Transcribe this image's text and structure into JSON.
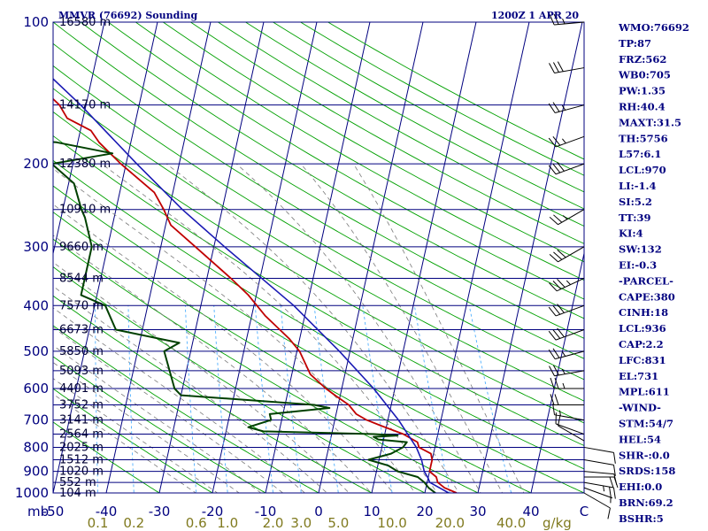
{
  "header": {
    "title": "MMVR (76692) Sounding",
    "time": "1200Z  1 APR 20"
  },
  "indices": [
    "WMO:76692",
    "TP:87",
    "FRZ:562",
    "WB0:705",
    "PW:1.35",
    "RH:40.4",
    "MAXT:31.5",
    "TH:5756",
    "L57:6.1",
    "LCL:970",
    "LI:-1.4",
    "SI:5.2",
    "TT:39",
    "KI:4",
    "SW:132",
    "EI:-0.3",
    "-PARCEL-",
    "CAPE:380",
    "CINH:18",
    "LCL:936",
    "CAP:2.2",
    "LFC:831",
    "EL:731",
    "MPL:611",
    "-WIND-",
    "STM:54/7",
    "HEL:54",
    "SHR-:0.0",
    "SRDS:158",
    "EHI:0.0",
    "BRN:69.2",
    "BSHR:5"
  ],
  "colors": {
    "frame": "#00007f",
    "isobar": "#00007f",
    "isotherm": "#00007f",
    "dry_adiabat": "#00a000",
    "moist_adiabat": "#7a7a7a",
    "mixing_ratio": "#4fb0ff",
    "temperature": "#c00000",
    "dewpoint": "#004000",
    "parcel": "#1a1ab4",
    "wind_barb": "#000000",
    "mixing_label": "#807a1f"
  },
  "chart_data": {
    "type": "line",
    "chart_kind": "skew-T log-P sounding",
    "pressure_axis": {
      "unit": "mb",
      "levels": [
        100,
        200,
        300,
        400,
        500,
        600,
        700,
        800,
        900,
        1000
      ],
      "range": [
        1000,
        100
      ],
      "scale": "log"
    },
    "temperature_axis": {
      "ticks": [
        -50,
        -40,
        -30,
        -20,
        -10,
        0,
        10,
        20,
        30,
        40
      ],
      "end_label": "C",
      "range": [
        -50,
        50
      ]
    },
    "mixing_ratio_axis": {
      "unit": "g/kg",
      "labels": [
        "0.1",
        "0.2",
        "0.6",
        "1.0",
        "2.0",
        "3.0",
        "5.0",
        "10.0",
        "20.0",
        "40.0"
      ],
      "values": [
        0.1,
        0.2,
        0.6,
        1.0,
        2.0,
        3.0,
        5.0,
        10.0,
        20.0,
        40.0
      ]
    },
    "height_labels": [
      {
        "p": 100,
        "text": "16580 m"
      },
      {
        "p": 150,
        "text": "14170 m"
      },
      {
        "p": 200,
        "text": "12380 m"
      },
      {
        "p": 250,
        "text": "10910 m"
      },
      {
        "p": 300,
        "text": "9660 m"
      },
      {
        "p": 350,
        "text": "8544 m"
      },
      {
        "p": 400,
        "text": "7570 m"
      },
      {
        "p": 450,
        "text": "6673 m"
      },
      {
        "p": 500,
        "text": "5850 m"
      },
      {
        "p": 550,
        "text": "5093 m"
      },
      {
        "p": 600,
        "text": "4401 m"
      },
      {
        "p": 650,
        "text": "3752 m"
      },
      {
        "p": 700,
        "text": "3141 m"
      },
      {
        "p": 750,
        "text": "2564 m"
      },
      {
        "p": 800,
        "text": "2025 m"
      },
      {
        "p": 850,
        "text": "1512 m"
      },
      {
        "p": 900,
        "text": "1020 m"
      },
      {
        "p": 950,
        "text": "552 m"
      },
      {
        "p": 1000,
        "text": "104 m"
      }
    ],
    "series": [
      {
        "name": "temperature",
        "points": [
          [
            1000,
            26.0
          ],
          [
            975,
            23.5
          ],
          [
            950,
            22.0
          ],
          [
            925,
            21.5
          ],
          [
            900,
            20.0
          ],
          [
            875,
            20.0
          ],
          [
            850,
            20.0
          ],
          [
            825,
            19.5
          ],
          [
            800,
            17.0
          ],
          [
            780,
            16.5
          ],
          [
            750,
            13.5
          ],
          [
            720,
            9.0
          ],
          [
            700,
            6.0
          ],
          [
            680,
            3.8
          ],
          [
            650,
            2.0
          ],
          [
            620,
            -1.0
          ],
          [
            600,
            -3.0
          ],
          [
            560,
            -6.5
          ],
          [
            500,
            -9.5
          ],
          [
            470,
            -12.0
          ],
          [
            420,
            -17.5
          ],
          [
            380,
            -21.5
          ],
          [
            350,
            -25.5
          ],
          [
            300,
            -33.5
          ],
          [
            270,
            -39.0
          ],
          [
            250,
            -41.0
          ],
          [
            230,
            -43.5
          ],
          [
            200,
            -51.0
          ],
          [
            180,
            -56.0
          ],
          [
            170,
            -58.0
          ],
          [
            160,
            -63.0
          ],
          [
            150,
            -65.0
          ],
          [
            130,
            -72.0
          ],
          [
            110,
            -79.5
          ],
          [
            100,
            -79.5
          ]
        ]
      },
      {
        "name": "dewpoint",
        "points": [
          [
            1000,
            22.0
          ],
          [
            975,
            20.5
          ],
          [
            950,
            19.5
          ],
          [
            925,
            18.0
          ],
          [
            900,
            14.0
          ],
          [
            875,
            12.0
          ],
          [
            850,
            8.0
          ],
          [
            825,
            12.0
          ],
          [
            800,
            14.0
          ],
          [
            780,
            14.5
          ],
          [
            770,
            9.0
          ],
          [
            760,
            8.0
          ],
          [
            755,
            12.5
          ],
          [
            750,
            8.0
          ],
          [
            740,
            -13.0
          ],
          [
            725,
            -16.0
          ],
          [
            700,
            -12.0
          ],
          [
            680,
            -12.5
          ],
          [
            660,
            -1.5
          ],
          [
            650,
            -4.5
          ],
          [
            620,
            -30.0
          ],
          [
            600,
            -31.5
          ],
          [
            500,
            -35.0
          ],
          [
            480,
            -32.5
          ],
          [
            450,
            -45.0
          ],
          [
            400,
            -48.0
          ],
          [
            380,
            -53.0
          ],
          [
            300,
            -53.0
          ],
          [
            260,
            -55.5
          ],
          [
            250,
            -56.5
          ],
          [
            220,
            -59.0
          ],
          [
            200,
            -64.0
          ],
          [
            190,
            -53.0
          ],
          [
            180,
            -64.0
          ],
          [
            175,
            -78.0
          ],
          [
            160,
            -73.0
          ],
          [
            150,
            -72.0
          ],
          [
            140,
            -75.0
          ],
          [
            120,
            -79.0
          ],
          [
            110,
            -80.0
          ],
          [
            100,
            -82.0
          ]
        ]
      },
      {
        "name": "parcel",
        "points": [
          [
            1000,
            24.5
          ],
          [
            950,
            20.5
          ],
          [
            930,
            20.0
          ],
          [
            900,
            19.0
          ],
          [
            850,
            18.0
          ],
          [
            800,
            16.5
          ],
          [
            700,
            12.0
          ],
          [
            600,
            6.0
          ],
          [
            500,
            -2.0
          ],
          [
            400,
            -12.5
          ],
          [
            300,
            -28.0
          ],
          [
            250,
            -37.5
          ],
          [
            200,
            -48.0
          ],
          [
            150,
            -61.0
          ],
          [
            120,
            -72.0
          ],
          [
            110,
            -75.0
          ]
        ]
      }
    ],
    "wind_barbs": [
      {
        "p": 1000,
        "dir": 120,
        "spd": 10
      },
      {
        "p": 975,
        "dir": 110,
        "spd": 5
      },
      {
        "p": 950,
        "dir": 100,
        "spd": 25
      },
      {
        "p": 925,
        "dir": 90,
        "spd": 20
      },
      {
        "p": 900,
        "dir": 95,
        "spd": 10
      },
      {
        "p": 850,
        "dir": 100,
        "spd": 10
      },
      {
        "p": 800,
        "dir": 100,
        "spd": 10
      },
      {
        "p": 775,
        "dir": 300,
        "spd": 10
      },
      {
        "p": 750,
        "dir": 290,
        "spd": 10
      },
      {
        "p": 700,
        "dir": 280,
        "spd": 15
      },
      {
        "p": 650,
        "dir": 270,
        "spd": 20
      },
      {
        "p": 600,
        "dir": 270,
        "spd": 25
      },
      {
        "p": 550,
        "dir": 260,
        "spd": 25
      },
      {
        "p": 500,
        "dir": 255,
        "spd": 25
      },
      {
        "p": 450,
        "dir": 250,
        "spd": 30
      },
      {
        "p": 400,
        "dir": 250,
        "spd": 30
      },
      {
        "p": 350,
        "dir": 245,
        "spd": 35
      },
      {
        "p": 300,
        "dir": 240,
        "spd": 30
      },
      {
        "p": 250,
        "dir": 240,
        "spd": 25
      },
      {
        "p": 200,
        "dir": 250,
        "spd": 30
      },
      {
        "p": 175,
        "dir": 250,
        "spd": 25
      },
      {
        "p": 150,
        "dir": 255,
        "spd": 25
      },
      {
        "p": 125,
        "dir": 260,
        "spd": 30
      },
      {
        "p": 100,
        "dir": 265,
        "spd": 25
      }
    ]
  }
}
